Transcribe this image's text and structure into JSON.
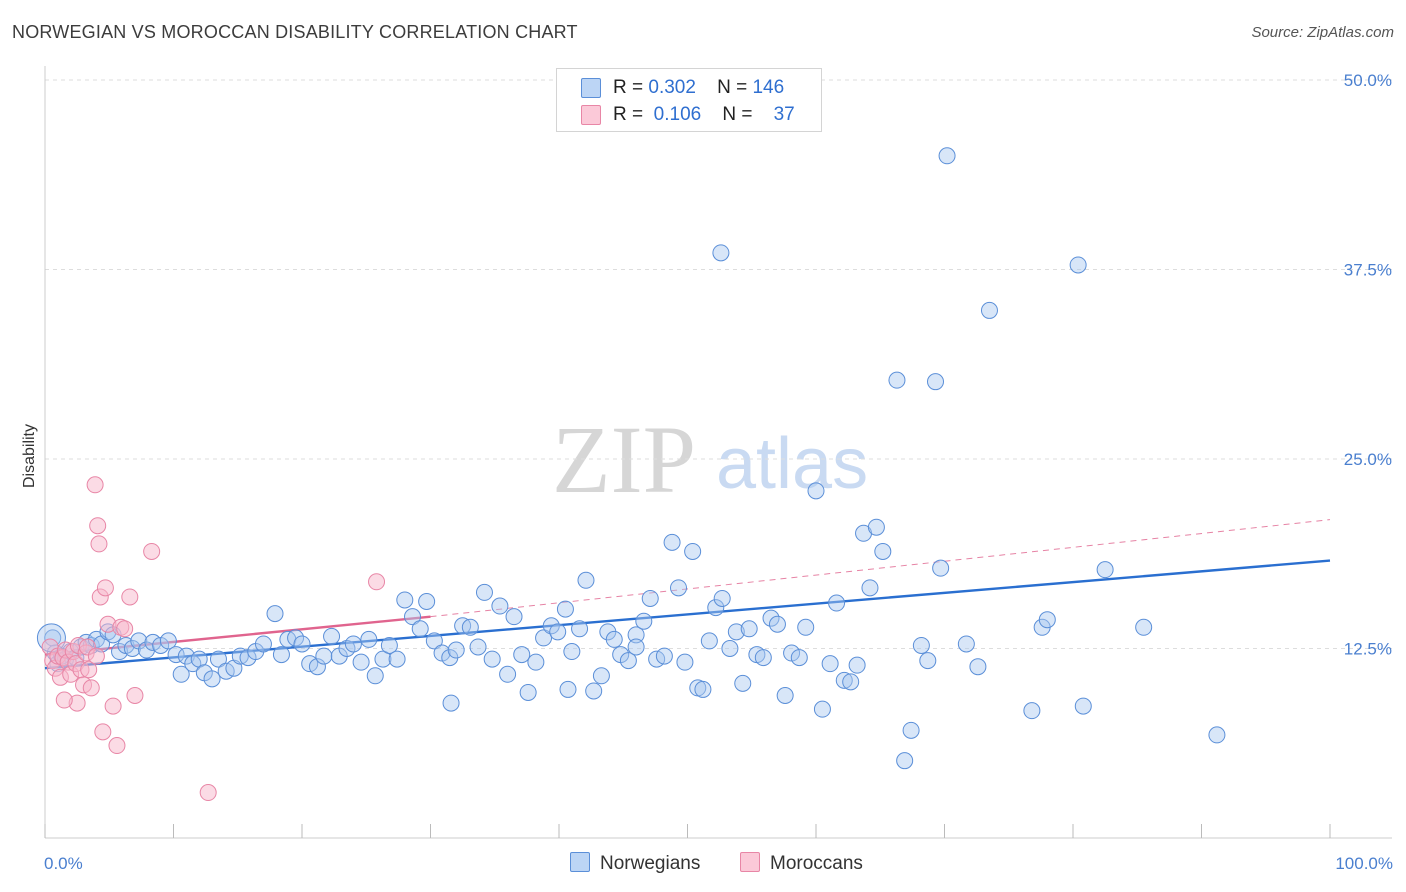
{
  "title": "NORWEGIAN VS MOROCCAN DISABILITY CORRELATION CHART",
  "source": "Source: ZipAtlas.com",
  "watermark": {
    "zip": "ZIP",
    "atlas": "atlas"
  },
  "legend_top": {
    "rows": [
      {
        "r_label": "R =",
        "r_value": "0.302",
        "n_label": "N =",
        "n_value": "146"
      },
      {
        "r_label": "R =",
        "r_value": "0.106",
        "n_label": "N =",
        "n_value": "37"
      }
    ]
  },
  "colors": {
    "norwegians_fill": "#a9c8f0",
    "norwegians_stroke": "#5b8fd8",
    "norwegians_line": "#2a6fd0",
    "moroccans_fill": "#f7b8cc",
    "moroccans_stroke": "#e886a6",
    "moroccans_line": "#e0648e",
    "tick_text": "#4a7fcf",
    "grid": "#dddddd"
  },
  "chart_data": {
    "type": "scatter",
    "title": "NORWEGIAN VS MOROCCAN DISABILITY CORRELATION CHART",
    "xlabel": "",
    "ylabel": "Disability",
    "xlim": [
      0,
      100
    ],
    "ylim": [
      0,
      50
    ],
    "x_tick_labels": [
      "0.0%",
      "100.0%"
    ],
    "y_ticks": [
      12.5,
      25.0,
      37.5,
      50.0
    ],
    "y_tick_labels": [
      "12.5%",
      "25.0%",
      "37.5%",
      "50.0%"
    ],
    "grid": "horizontal dashed",
    "legend_placement": "top-center and bottom",
    "series": [
      {
        "name": "Norwegians",
        "r": 0.302,
        "n": 146,
        "trend": {
          "x": [
            0,
            100
          ],
          "y": [
            11.2,
            18.3
          ]
        },
        "points": [
          [
            0.6,
            13.2
          ],
          [
            0.8,
            12.2
          ],
          [
            1.0,
            11.5
          ],
          [
            1.3,
            12.0
          ],
          [
            1.6,
            11.8
          ],
          [
            2.0,
            12.3
          ],
          [
            2.4,
            11.9
          ],
          [
            2.8,
            12.6
          ],
          [
            3.2,
            12.9
          ],
          [
            3.6,
            12.7
          ],
          [
            4.0,
            13.1
          ],
          [
            4.4,
            12.8
          ],
          [
            4.9,
            13.6
          ],
          [
            5.3,
            13.4
          ],
          [
            5.8,
            12.3
          ],
          [
            6.3,
            12.7
          ],
          [
            6.8,
            12.5
          ],
          [
            7.3,
            13.0
          ],
          [
            7.9,
            12.4
          ],
          [
            8.4,
            12.9
          ],
          [
            9.0,
            12.7
          ],
          [
            9.6,
            13.0
          ],
          [
            10.2,
            12.1
          ],
          [
            10.6,
            10.8
          ],
          [
            11.0,
            12.0
          ],
          [
            11.5,
            11.5
          ],
          [
            12.0,
            11.8
          ],
          [
            12.4,
            10.9
          ],
          [
            13.0,
            10.5
          ],
          [
            13.5,
            11.8
          ],
          [
            14.1,
            11.0
          ],
          [
            14.7,
            11.2
          ],
          [
            15.2,
            12.0
          ],
          [
            15.8,
            11.9
          ],
          [
            16.4,
            12.3
          ],
          [
            17.0,
            12.8
          ],
          [
            17.9,
            14.8
          ],
          [
            18.4,
            12.1
          ],
          [
            18.9,
            13.1
          ],
          [
            19.5,
            13.2
          ],
          [
            20.0,
            12.8
          ],
          [
            20.6,
            11.5
          ],
          [
            21.2,
            11.3
          ],
          [
            21.7,
            12.0
          ],
          [
            22.3,
            13.3
          ],
          [
            22.9,
            12.0
          ],
          [
            23.5,
            12.5
          ],
          [
            24.0,
            12.8
          ],
          [
            24.6,
            11.6
          ],
          [
            25.2,
            13.1
          ],
          [
            25.7,
            10.7
          ],
          [
            26.3,
            11.8
          ],
          [
            26.8,
            12.7
          ],
          [
            27.4,
            11.8
          ],
          [
            28.0,
            15.7
          ],
          [
            28.6,
            14.6
          ],
          [
            29.2,
            13.8
          ],
          [
            29.7,
            15.6
          ],
          [
            30.3,
            13.0
          ],
          [
            30.9,
            12.2
          ],
          [
            31.5,
            11.9
          ],
          [
            32.0,
            12.4
          ],
          [
            32.5,
            14.0
          ],
          [
            33.1,
            13.9
          ],
          [
            33.7,
            12.6
          ],
          [
            34.2,
            16.2
          ],
          [
            34.8,
            11.8
          ],
          [
            35.4,
            15.3
          ],
          [
            36.0,
            10.8
          ],
          [
            36.5,
            14.6
          ],
          [
            37.1,
            12.1
          ],
          [
            37.6,
            9.6
          ],
          [
            38.2,
            11.6
          ],
          [
            38.8,
            13.2
          ],
          [
            39.4,
            14.0
          ],
          [
            39.9,
            13.6
          ],
          [
            40.5,
            15.1
          ],
          [
            41.0,
            12.3
          ],
          [
            41.6,
            13.8
          ],
          [
            42.1,
            17.0
          ],
          [
            42.7,
            9.7
          ],
          [
            43.3,
            10.7
          ],
          [
            43.8,
            13.6
          ],
          [
            44.3,
            13.1
          ],
          [
            44.8,
            12.1
          ],
          [
            45.4,
            11.7
          ],
          [
            46.0,
            13.4
          ],
          [
            46.6,
            14.3
          ],
          [
            47.1,
            15.8
          ],
          [
            47.6,
            11.8
          ],
          [
            48.2,
            12.0
          ],
          [
            48.8,
            19.5
          ],
          [
            49.3,
            16.5
          ],
          [
            49.8,
            11.6
          ],
          [
            50.4,
            18.9
          ],
          [
            50.8,
            9.9
          ],
          [
            51.2,
            9.8
          ],
          [
            51.7,
            13.0
          ],
          [
            52.2,
            15.2
          ],
          [
            52.7,
            15.8
          ],
          [
            53.3,
            12.5
          ],
          [
            53.8,
            13.6
          ],
          [
            54.3,
            10.2
          ],
          [
            54.8,
            13.8
          ],
          [
            55.4,
            12.1
          ],
          [
            55.9,
            11.9
          ],
          [
            56.5,
            14.5
          ],
          [
            57.0,
            14.1
          ],
          [
            57.6,
            9.4
          ],
          [
            58.1,
            12.2
          ],
          [
            58.7,
            11.9
          ],
          [
            59.2,
            13.9
          ],
          [
            60.0,
            22.9
          ],
          [
            60.5,
            8.5
          ],
          [
            61.1,
            11.5
          ],
          [
            61.6,
            15.5
          ],
          [
            62.2,
            10.4
          ],
          [
            62.7,
            10.3
          ],
          [
            63.2,
            11.4
          ],
          [
            63.7,
            20.1
          ],
          [
            64.2,
            16.5
          ],
          [
            64.7,
            20.5
          ],
          [
            65.2,
            18.9
          ],
          [
            66.3,
            30.2
          ],
          [
            66.9,
            5.1
          ],
          [
            67.4,
            7.1
          ],
          [
            68.2,
            12.7
          ],
          [
            68.7,
            11.7
          ],
          [
            69.3,
            30.1
          ],
          [
            69.7,
            17.8
          ],
          [
            70.2,
            45.0
          ],
          [
            71.7,
            12.8
          ],
          [
            72.6,
            11.3
          ],
          [
            73.5,
            34.8
          ],
          [
            76.8,
            8.4
          ],
          [
            77.6,
            13.9
          ],
          [
            78.0,
            14.4
          ],
          [
            80.4,
            37.8
          ],
          [
            80.8,
            8.7
          ],
          [
            82.5,
            17.7
          ],
          [
            85.5,
            13.9
          ],
          [
            91.2,
            6.8
          ],
          [
            52.6,
            38.6
          ],
          [
            46.0,
            12.6
          ],
          [
            40.7,
            9.8
          ],
          [
            31.6,
            8.9
          ]
        ]
      },
      {
        "name": "Moroccans",
        "r": 0.106,
        "n": 37,
        "trend": {
          "x": [
            0,
            30
          ],
          "y": [
            12.1,
            14.6
          ]
        },
        "trend_extended": {
          "x": [
            30,
            100
          ],
          "y": [
            14.6,
            21.0
          ]
        },
        "points": [
          [
            0.4,
            12.6
          ],
          [
            0.6,
            11.7
          ],
          [
            0.8,
            11.2
          ],
          [
            1.0,
            12.0
          ],
          [
            1.2,
            10.6
          ],
          [
            1.4,
            11.9
          ],
          [
            1.6,
            12.4
          ],
          [
            1.8,
            11.6
          ],
          [
            2.0,
            10.8
          ],
          [
            2.2,
            12.3
          ],
          [
            2.4,
            11.5
          ],
          [
            2.6,
            12.7
          ],
          [
            2.8,
            11.1
          ],
          [
            3.0,
            10.1
          ],
          [
            3.2,
            12.2
          ],
          [
            3.4,
            11.1
          ],
          [
            3.6,
            9.9
          ],
          [
            3.9,
            23.3
          ],
          [
            4.1,
            20.6
          ],
          [
            4.2,
            19.4
          ],
          [
            4.3,
            15.9
          ],
          [
            4.5,
            7.0
          ],
          [
            4.7,
            16.5
          ],
          [
            4.9,
            14.1
          ],
          [
            5.3,
            8.7
          ],
          [
            5.6,
            6.1
          ],
          [
            5.9,
            13.9
          ],
          [
            6.2,
            13.8
          ],
          [
            6.6,
            15.9
          ],
          [
            7.0,
            9.4
          ],
          [
            2.5,
            8.9
          ],
          [
            1.5,
            9.1
          ],
          [
            8.3,
            18.9
          ],
          [
            12.7,
            3.0
          ],
          [
            25.8,
            16.9
          ],
          [
            3.3,
            12.6
          ],
          [
            4.0,
            12.0
          ]
        ]
      }
    ]
  },
  "bottom_legend": {
    "items": [
      {
        "label": "Norwegians"
      },
      {
        "label": "Moroccans"
      }
    ]
  }
}
